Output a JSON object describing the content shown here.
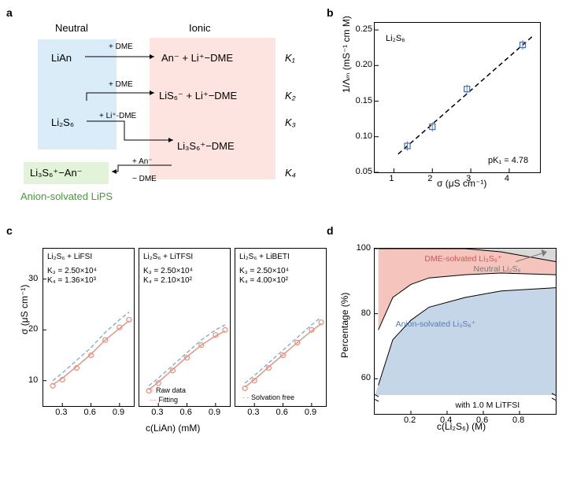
{
  "panel_labels": {
    "a": "a",
    "b": "b",
    "c": "c",
    "d": "d"
  },
  "panel_a": {
    "header_neutral": "Neutral",
    "header_ionic": "Ionic",
    "colors": {
      "neutral_bg": "#d9ecf7",
      "ionic_bg": "#fde4e1",
      "green_bg": "#e3f3da",
      "anion_text": "#4a9b3a"
    },
    "species": {
      "LiAn": "LiAn",
      "An_minus_Li_DME": "An⁻  +  Li⁺−DME",
      "LiS6_Li_DME": "LiS₆⁻  +  Li⁺−DME",
      "Li2S6": "Li₂S₆",
      "Li3S6_DME": "Li₃S₆⁺−DME",
      "Li3S6_An": "Li₃S₆⁺−An⁻"
    },
    "arrow_labels": {
      "plus_DME": "+ DME",
      "plus_LiDME": "+ Li⁺-DME",
      "plus_An": "+ An⁻",
      "minus_DME": "− DME"
    },
    "k_labels": {
      "K1": "K₁",
      "K2": "K₂",
      "K3": "K₃",
      "K4": "K₄"
    },
    "anion_solvated_label": "Anion-solvated LiPS"
  },
  "panel_b": {
    "sample_label": "Li₂S₆",
    "pk_label": "pK₁ = 4.78",
    "xlabel": "σ (μS cm⁻¹)",
    "ylabel": "1/Λₘ (mS⁻¹ cm M)",
    "xlim": [
      0.5,
      4.8
    ],
    "ylim": [
      0.05,
      0.26
    ],
    "xticks": [
      1,
      2,
      3,
      4
    ],
    "yticks": [
      0.05,
      0.1,
      0.15,
      0.2,
      0.25
    ],
    "data_x": [
      1.35,
      2.0,
      2.9,
      4.35
    ],
    "data_y": [
      0.087,
      0.114,
      0.167,
      0.229
    ],
    "marker_style": "square-open",
    "marker_color": "#3b6db5",
    "line_dash": "6,4",
    "line_color": "#000000",
    "background_color": "#ffffff"
  },
  "panel_c": {
    "ylabel": "σ (μS cm⁻¹)",
    "xlabel": "c(LiAn) (mM)",
    "ylim": [
      5,
      36
    ],
    "yticks": [
      10,
      20,
      30
    ],
    "xlim": [
      0.1,
      1.05
    ],
    "xticks": [
      0.3,
      0.6,
      0.9
    ],
    "legend": {
      "raw": "Raw data",
      "fit": "Fitting",
      "solvfree": "Solvation free"
    },
    "legend_colors": {
      "raw": "#e88f7f",
      "fit": "#e88f7f",
      "solvfree": "#6aa7c8"
    },
    "subplots": [
      {
        "title": "Li₂S₆ + LiFSI",
        "K3": "K₃ = 2.50×10⁴",
        "K4": "K₄ = 1.36×10³",
        "x": [
          0.2,
          0.3,
          0.45,
          0.6,
          0.75,
          0.9,
          1.0
        ],
        "y_raw": [
          9.0,
          10.2,
          12.5,
          15.0,
          18.0,
          20.5,
          22.0
        ],
        "y_fit": [
          9.2,
          10.5,
          12.8,
          15.2,
          18.0,
          20.3,
          21.8
        ],
        "y_free": [
          10.0,
          11.5,
          14.0,
          16.5,
          19.5,
          22.0,
          23.5
        ]
      },
      {
        "title": "Li₂S₆ + LiTFSI",
        "K3": "K₃ = 2.50×10⁴",
        "K4": "K₄ = 2.10×10²",
        "x": [
          0.2,
          0.3,
          0.45,
          0.6,
          0.75,
          0.9,
          1.0
        ],
        "y_raw": [
          8.0,
          9.5,
          12.0,
          14.5,
          17.0,
          19.0,
          20.0
        ],
        "y_fit": [
          8.2,
          9.7,
          12.2,
          14.7,
          17.0,
          18.8,
          19.8
        ],
        "y_free": [
          9.0,
          10.5,
          13.0,
          15.5,
          18.0,
          20.0,
          21.0
        ]
      },
      {
        "title": "Li₂S₆ + LiBETI",
        "K3": "K₃ = 2.50×10⁴",
        "K4": "K₄ = 4.00×10²",
        "x": [
          0.2,
          0.3,
          0.45,
          0.6,
          0.75,
          0.9,
          1.0
        ],
        "y_raw": [
          8.5,
          10.0,
          12.5,
          15.0,
          17.5,
          20.0,
          21.5
        ],
        "y_fit": [
          8.7,
          10.2,
          12.7,
          15.1,
          17.5,
          19.8,
          21.2
        ],
        "y_free": [
          9.5,
          11.0,
          13.5,
          16.0,
          18.5,
          21.0,
          22.5
        ]
      }
    ],
    "colors": {
      "raw_marker": "#e88f7f",
      "fit_line": "#e88f7f",
      "free_line": "#6aa7c8"
    }
  },
  "panel_d": {
    "xlabel": "c(Li₂S₆) (M)",
    "ylabel": "Percentage (%)",
    "with_label": "with 1.0 M LiTFSI",
    "region_labels": {
      "dme": "DME-solvated Li₃S₆⁺",
      "neutral": "Neutral Li₂S₆",
      "anion": "Anion-solvated Li₃S₆⁺"
    },
    "region_label_colors": {
      "dme": "#c85a5a",
      "neutral": "#7a7a7a",
      "anion": "#5a7aa8"
    },
    "xlim": [
      0,
      1.0
    ],
    "xticks": [
      0.2,
      0.4,
      0.6,
      0.8
    ],
    "ylim_upper": [
      55,
      100
    ],
    "yticks_upper": [
      60,
      80,
      100
    ],
    "colors": {
      "dme_fill": "#f5c4bd",
      "neutral_fill": "#d9d9d9",
      "anion_fill": "#c5d6e8"
    },
    "curve_anion_top_x": [
      0.02,
      0.1,
      0.2,
      0.3,
      0.5,
      0.7,
      1.0
    ],
    "curve_anion_top_y": [
      58,
      72,
      78,
      82,
      85,
      87,
      88
    ],
    "curve_dme_bottom_x": [
      0.02,
      0.1,
      0.2,
      0.3,
      0.5,
      0.7,
      1.0
    ],
    "curve_dme_bottom_y": [
      75,
      85,
      89,
      91,
      92,
      92.5,
      92
    ],
    "curve_dme_top_x": [
      0.02,
      0.1,
      0.2,
      0.3,
      0.5,
      0.7,
      1.0
    ],
    "curve_dme_top_y": [
      100,
      100,
      100,
      100,
      100,
      99,
      96
    ]
  }
}
